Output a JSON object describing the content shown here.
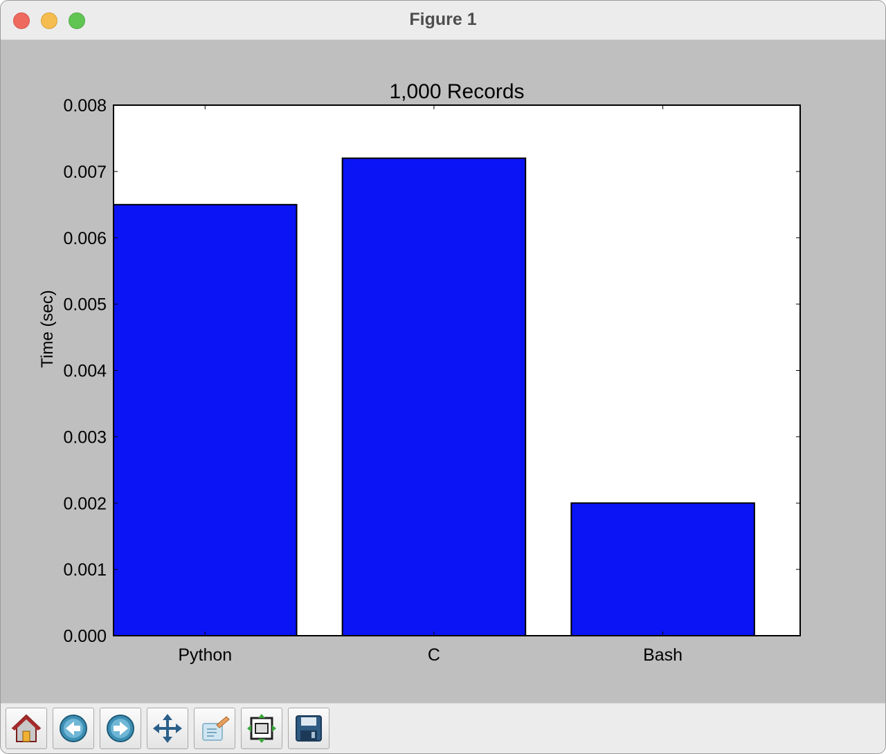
{
  "window": {
    "title": "Figure 1"
  },
  "toolbar": {
    "buttons": [
      {
        "name": "home",
        "icon": "home-icon"
      },
      {
        "name": "back",
        "icon": "back-arrow-icon"
      },
      {
        "name": "forward",
        "icon": "forward-arrow-icon"
      },
      {
        "name": "pan",
        "icon": "move-arrows-icon"
      },
      {
        "name": "zoom",
        "icon": "zoom-rect-icon"
      },
      {
        "name": "subplots",
        "icon": "subplots-config-icon"
      },
      {
        "name": "save",
        "icon": "floppy-disk-icon"
      }
    ]
  },
  "chart_data": {
    "type": "bar",
    "title": "1,000 Records",
    "ylabel": "Time (sec)",
    "xlabel": "",
    "categories": [
      "Python",
      "C",
      "Bash"
    ],
    "values": [
      0.0065,
      0.0072,
      0.002
    ],
    "ylim": [
      0,
      0.008
    ],
    "yticks": [
      "0.000",
      "0.001",
      "0.002",
      "0.003",
      "0.004",
      "0.005",
      "0.006",
      "0.007",
      "0.008"
    ],
    "bar_color": "#0a14f5",
    "grid": false
  }
}
